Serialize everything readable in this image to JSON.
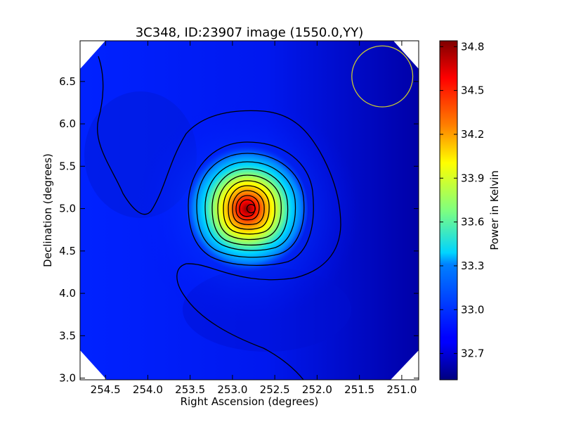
{
  "chart_data": {
    "type": "heatmap",
    "title": "3C348, ID:23907 image (1550.0,YY)",
    "xlabel": "Right Ascension (degrees)",
    "ylabel": "Declination (degrees)",
    "colorbar_label": "Power in Kelvin",
    "x_range": [
      254.8,
      250.8
    ],
    "y_range": [
      2.98,
      6.98
    ],
    "x_ticks": [
      254.5,
      254.0,
      253.5,
      253.0,
      252.5,
      252.0,
      251.5,
      251.0
    ],
    "x_tick_labels": [
      "254.5",
      "254.0",
      "253.5",
      "253.0",
      "252.5",
      "252.0",
      "251.5",
      "251.0"
    ],
    "y_ticks": [
      3.0,
      3.5,
      4.0,
      4.5,
      5.0,
      5.5,
      6.0,
      6.5
    ],
    "y_tick_labels": [
      "3.0",
      "3.5",
      "4.0",
      "4.5",
      "5.0",
      "5.5",
      "6.0",
      "6.5"
    ],
    "colorbar_range": [
      32.52,
      34.84
    ],
    "colorbar_ticks": [
      32.7,
      33.0,
      33.3,
      33.6,
      33.9,
      34.2,
      34.5,
      34.8
    ],
    "colorbar_tick_labels": [
      "32.7",
      "33.0",
      "33.3",
      "33.6",
      "33.9",
      "34.2",
      "34.5",
      "34.8"
    ],
    "colormap": "jet",
    "grid": false,
    "peak": {
      "ra": 252.78,
      "dec": 5.0,
      "value": 34.84
    },
    "beam_circle": {
      "ra": 251.23,
      "dec": 6.56,
      "radius_deg": 0.36,
      "color": "#c8c832"
    },
    "source_marker": {
      "ra": 252.78,
      "dec": 5.0
    }
  }
}
